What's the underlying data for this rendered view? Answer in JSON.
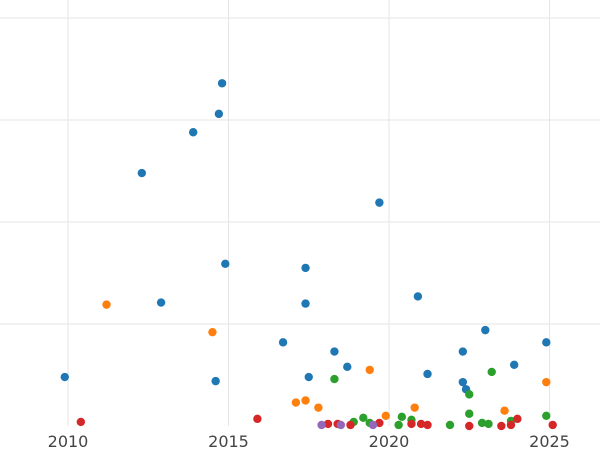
{
  "chart_data": {
    "type": "scatter",
    "title": "",
    "xlabel": "",
    "ylabel": "",
    "xlim": [
      2010,
      2026
    ],
    "ylim": [
      0,
      41
    ],
    "x_ticks": [
      2010,
      2015,
      2020,
      2025
    ],
    "x_tick_labels": [
      "2010",
      "2015",
      "2020",
      "2025"
    ],
    "y_gridlines": [
      10,
      20,
      30,
      40
    ],
    "grid": true,
    "legend": "none",
    "series": [
      {
        "color": "#1f77b4",
        "points": [
          {
            "x": 2009.9,
            "y": 4.8
          },
          {
            "x": 2012.3,
            "y": 24.8
          },
          {
            "x": 2012.9,
            "y": 12.1
          },
          {
            "x": 2013.9,
            "y": 28.8
          },
          {
            "x": 2014.6,
            "y": 4.4
          },
          {
            "x": 2014.7,
            "y": 30.6
          },
          {
            "x": 2014.8,
            "y": 33.6
          },
          {
            "x": 2014.9,
            "y": 15.9
          },
          {
            "x": 2016.7,
            "y": 8.2
          },
          {
            "x": 2017.4,
            "y": 12.0
          },
          {
            "x": 2017.4,
            "y": 15.5
          },
          {
            "x": 2017.5,
            "y": 4.8
          },
          {
            "x": 2018.3,
            "y": 7.3
          },
          {
            "x": 2018.7,
            "y": 5.8
          },
          {
            "x": 2019.7,
            "y": 21.9
          },
          {
            "x": 2020.9,
            "y": 12.7
          },
          {
            "x": 2021.2,
            "y": 5.1
          },
          {
            "x": 2022.3,
            "y": 7.3
          },
          {
            "x": 2022.3,
            "y": 4.3
          },
          {
            "x": 2022.4,
            "y": 3.6
          },
          {
            "x": 2023.0,
            "y": 9.4
          },
          {
            "x": 2023.9,
            "y": 6.0
          },
          {
            "x": 2024.9,
            "y": 8.2
          }
        ]
      },
      {
        "color": "#ff7f0e",
        "points": [
          {
            "x": 2011.2,
            "y": 11.9
          },
          {
            "x": 2014.5,
            "y": 9.2
          },
          {
            "x": 2017.1,
            "y": 2.3
          },
          {
            "x": 2017.4,
            "y": 2.5
          },
          {
            "x": 2017.8,
            "y": 1.8
          },
          {
            "x": 2019.4,
            "y": 5.5
          },
          {
            "x": 2019.9,
            "y": 1.0
          },
          {
            "x": 2020.8,
            "y": 1.8
          },
          {
            "x": 2023.6,
            "y": 1.5
          },
          {
            "x": 2024.9,
            "y": 4.3
          }
        ]
      },
      {
        "color": "#2ca02c",
        "points": [
          {
            "x": 2018.3,
            "y": 4.6
          },
          {
            "x": 2018.9,
            "y": 0.4
          },
          {
            "x": 2019.2,
            "y": 0.8
          },
          {
            "x": 2019.4,
            "y": 0.3
          },
          {
            "x": 2020.3,
            "y": 0.1
          },
          {
            "x": 2020.4,
            "y": 0.9
          },
          {
            "x": 2020.7,
            "y": 0.6
          },
          {
            "x": 2021.9,
            "y": 0.1
          },
          {
            "x": 2022.5,
            "y": 1.2
          },
          {
            "x": 2022.5,
            "y": 3.1
          },
          {
            "x": 2022.9,
            "y": 0.3
          },
          {
            "x": 2023.1,
            "y": 0.2
          },
          {
            "x": 2023.2,
            "y": 5.3
          },
          {
            "x": 2023.8,
            "y": 0.5
          },
          {
            "x": 2024.9,
            "y": 1.0
          }
        ]
      },
      {
        "color": "#d62728",
        "points": [
          {
            "x": 2010.4,
            "y": 0.4
          },
          {
            "x": 2015.9,
            "y": 0.7
          },
          {
            "x": 2018.1,
            "y": 0.2
          },
          {
            "x": 2018.4,
            "y": 0.2
          },
          {
            "x": 2018.8,
            "y": 0.1
          },
          {
            "x": 2019.7,
            "y": 0.3
          },
          {
            "x": 2020.7,
            "y": 0.2
          },
          {
            "x": 2021.0,
            "y": 0.2
          },
          {
            "x": 2021.2,
            "y": 0.1
          },
          {
            "x": 2022.5,
            "y": 0.0
          },
          {
            "x": 2023.5,
            "y": 0.0
          },
          {
            "x": 2023.8,
            "y": 0.1
          },
          {
            "x": 2024.0,
            "y": 0.7
          },
          {
            "x": 2025.1,
            "y": 0.1
          }
        ]
      },
      {
        "color": "#9467bd",
        "points": [
          {
            "x": 2017.9,
            "y": 0.1
          },
          {
            "x": 2018.5,
            "y": 0.1
          },
          {
            "x": 2019.5,
            "y": 0.1
          }
        ]
      }
    ]
  }
}
